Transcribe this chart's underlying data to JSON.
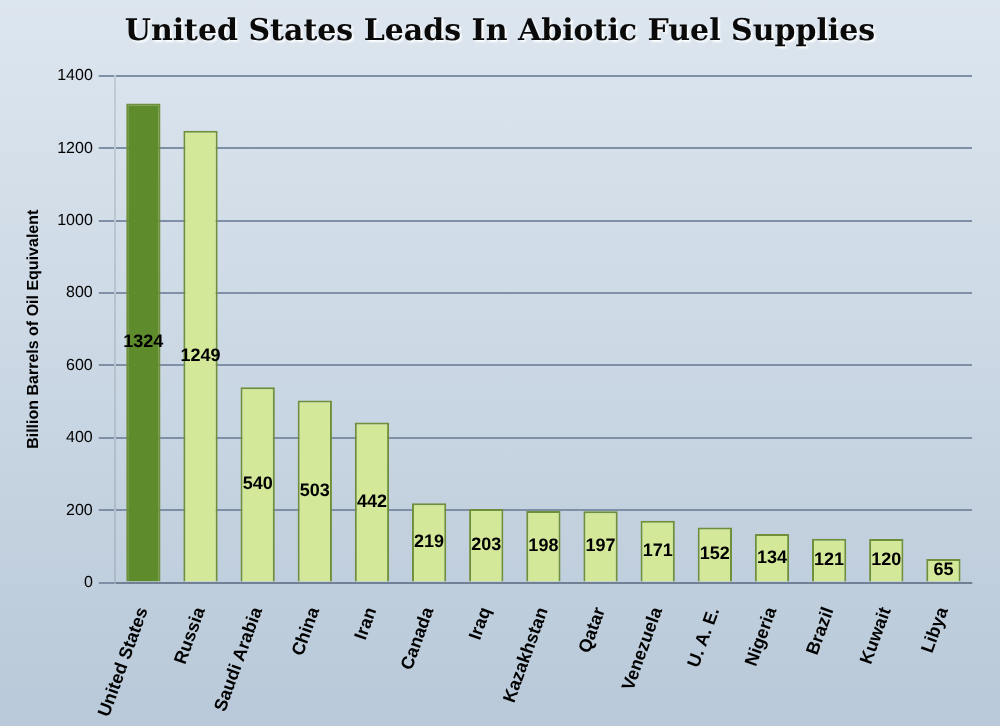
{
  "chart_data": {
    "type": "bar",
    "title": "United States Leads In Abiotic Fuel Supplies",
    "ylabel": "Billion Barrels of Oil Equivalent",
    "categories": [
      "United States",
      "Russia",
      "Saudi Arabia",
      "China",
      "Iran",
      "Canada",
      "Iraq",
      "Kazakhstan",
      "Qatar",
      "Venezuela",
      "U. A. E.",
      "Nigeria",
      "Brazil",
      "Kuwait",
      "Libya"
    ],
    "values": [
      1324,
      1249,
      540,
      503,
      442,
      219,
      203,
      198,
      197,
      171,
      152,
      134,
      121,
      120,
      65
    ],
    "colors": [
      "#5e8c2c",
      "#d4e89a",
      "#d4e89a",
      "#d4e89a",
      "#d4e89a",
      "#d4e89a",
      "#d4e89a",
      "#d4e89a",
      "#d4e89a",
      "#d4e89a",
      "#d4e89a",
      "#d4e89a",
      "#d4e89a",
      "#d4e89a",
      "#d4e89a"
    ],
    "ylim": [
      0,
      1400
    ],
    "yticks": [
      0,
      200,
      400,
      600,
      800,
      1000,
      1200,
      1400
    ],
    "grid": "y",
    "data_labels": true
  }
}
